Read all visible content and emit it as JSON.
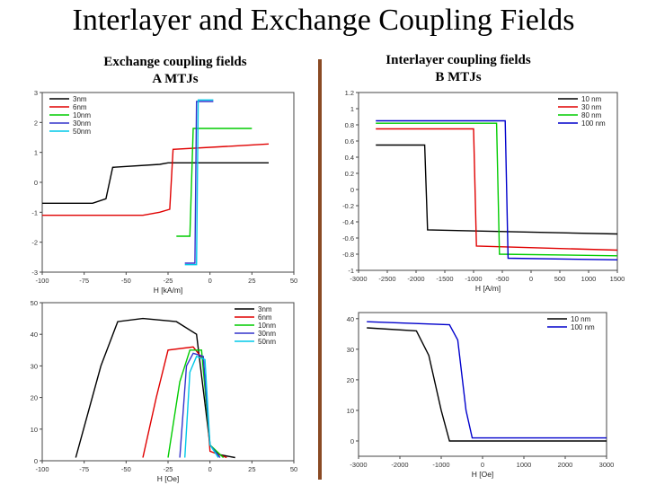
{
  "title": "Interlayer and Exchange Coupling Fields",
  "left_heading": {
    "line1": "Exchange coupling fields",
    "line2": "A MTJs"
  },
  "right_heading": {
    "line1": "Interlayer coupling fields",
    "line2": "B MTJs"
  },
  "divider_color": "#8a4a24",
  "chart_data": [
    {
      "type": "line",
      "xlabel": "H [kA/m]",
      "ylabel": "",
      "xlim": [
        -100,
        50
      ],
      "ylim": [
        -3,
        3
      ],
      "xticks": [
        -100,
        -75,
        -50,
        -25,
        0,
        25,
        50
      ],
      "yticks": [
        -3,
        -2,
        -1,
        0,
        1,
        2,
        3
      ],
      "legend_position": "top-left",
      "series": [
        {
          "name": "3nm",
          "color": "#000000",
          "x": [
            -100,
            -70,
            -62,
            -58,
            -30,
            -25,
            5,
            35
          ],
          "y": [
            -0.7,
            -0.7,
            -0.55,
            0.5,
            0.6,
            0.65,
            0.65,
            0.65
          ]
        },
        {
          "name": "6nm",
          "color": "#e00000",
          "x": [
            -100,
            -40,
            -30,
            -24,
            -22,
            10,
            35
          ],
          "y": [
            -1.1,
            -1.1,
            -1.0,
            -0.9,
            1.1,
            1.2,
            1.28
          ]
        },
        {
          "name": "10nm",
          "color": "#00cc00",
          "x": [
            -20,
            -12,
            -10,
            25
          ],
          "y": [
            -1.8,
            -1.8,
            1.8,
            1.8
          ]
        },
        {
          "name": "30nm",
          "color": "#3333cc",
          "x": [
            -15,
            -9,
            -8,
            2
          ],
          "y": [
            -2.7,
            -2.7,
            2.7,
            2.7
          ]
        },
        {
          "name": "50nm",
          "color": "#00c8e8",
          "x": [
            -15,
            -8,
            -7,
            2
          ],
          "y": [
            -2.75,
            -2.75,
            2.75,
            2.75
          ]
        }
      ]
    },
    {
      "type": "line",
      "xlabel": "H [A/m]",
      "ylabel": "",
      "xlim": [
        -3000,
        1500
      ],
      "ylim": [
        -1.0,
        1.2
      ],
      "xticks": [
        -3000,
        -2500,
        -2000,
        -1500,
        -1000,
        -500,
        0,
        500,
        1000,
        1500
      ],
      "yticks": [
        -1.0,
        -0.8,
        -0.6,
        -0.4,
        -0.2,
        0.0,
        0.2,
        0.4,
        0.6,
        0.8,
        1.0,
        1.2
      ],
      "legend_position": "top-right",
      "series": [
        {
          "name": "10 nm",
          "color": "#000000",
          "x": [
            -2700,
            -1850,
            -1800,
            1500
          ],
          "y": [
            0.55,
            0.55,
            -0.5,
            -0.55
          ]
        },
        {
          "name": "30 nm",
          "color": "#e00000",
          "x": [
            -2700,
            -1000,
            -950,
            1500
          ],
          "y": [
            0.75,
            0.75,
            -0.7,
            -0.75
          ]
        },
        {
          "name": "80 nm",
          "color": "#00cc00",
          "x": [
            -2700,
            -600,
            -550,
            1500
          ],
          "y": [
            0.82,
            0.82,
            -0.8,
            -0.82
          ]
        },
        {
          "name": "100 nm",
          "color": "#0000cc",
          "x": [
            -2700,
            -450,
            -400,
            1500
          ],
          "y": [
            0.85,
            0.85,
            -0.85,
            -0.87
          ]
        }
      ]
    },
    {
      "type": "line",
      "xlabel": "H [Oe]",
      "ylabel": "",
      "xlim": [
        -100,
        50
      ],
      "ylim": [
        0,
        50
      ],
      "xticks": [
        -100,
        -75,
        -50,
        -25,
        0,
        25,
        50
      ],
      "yticks": [
        0,
        10,
        20,
        30,
        40,
        50
      ],
      "legend_position": "top-right",
      "series": [
        {
          "name": "3nm",
          "color": "#000000",
          "x": [
            -80,
            -65,
            -55,
            -40,
            -20,
            -8,
            0,
            5,
            15
          ],
          "y": [
            1,
            30,
            44,
            45,
            44,
            40,
            5,
            2,
            1
          ]
        },
        {
          "name": "6nm",
          "color": "#e00000",
          "x": [
            -40,
            -32,
            -25,
            -10,
            -4,
            0,
            10
          ],
          "y": [
            1,
            20,
            35,
            36,
            32,
            3,
            1
          ]
        },
        {
          "name": "10nm",
          "color": "#00cc00",
          "x": [
            -25,
            -18,
            -12,
            -5,
            0,
            8
          ],
          "y": [
            1,
            25,
            35,
            35,
            5,
            1
          ]
        },
        {
          "name": "30nm",
          "color": "#3333cc",
          "x": [
            -18,
            -14,
            -10,
            -4,
            0,
            6
          ],
          "y": [
            1,
            30,
            34,
            33,
            5,
            1
          ]
        },
        {
          "name": "50nm",
          "color": "#00c8e8",
          "x": [
            -15,
            -12,
            -8,
            -3,
            0,
            5
          ],
          "y": [
            1,
            28,
            33,
            32,
            5,
            1
          ]
        }
      ]
    },
    {
      "type": "line",
      "xlabel": "H [Oe]",
      "ylabel": "",
      "xlim": [
        -3000,
        3000
      ],
      "ylim": [
        -5,
        42
      ],
      "xticks": [
        -3000,
        -2000,
        -1000,
        0,
        1000,
        2000,
        3000
      ],
      "yticks": [
        0,
        10,
        20,
        30,
        40
      ],
      "legend_position": "top-right",
      "series": [
        {
          "name": "10 nm",
          "color": "#000000",
          "x": [
            -2800,
            -1600,
            -1300,
            -1000,
            -800,
            3000
          ],
          "y": [
            37,
            36,
            28,
            10,
            0,
            0
          ]
        },
        {
          "name": "100 nm",
          "color": "#0000cc",
          "x": [
            -2800,
            -800,
            -600,
            -400,
            -250,
            3000
          ],
          "y": [
            39,
            38,
            33,
            10,
            1,
            1
          ]
        }
      ]
    }
  ]
}
